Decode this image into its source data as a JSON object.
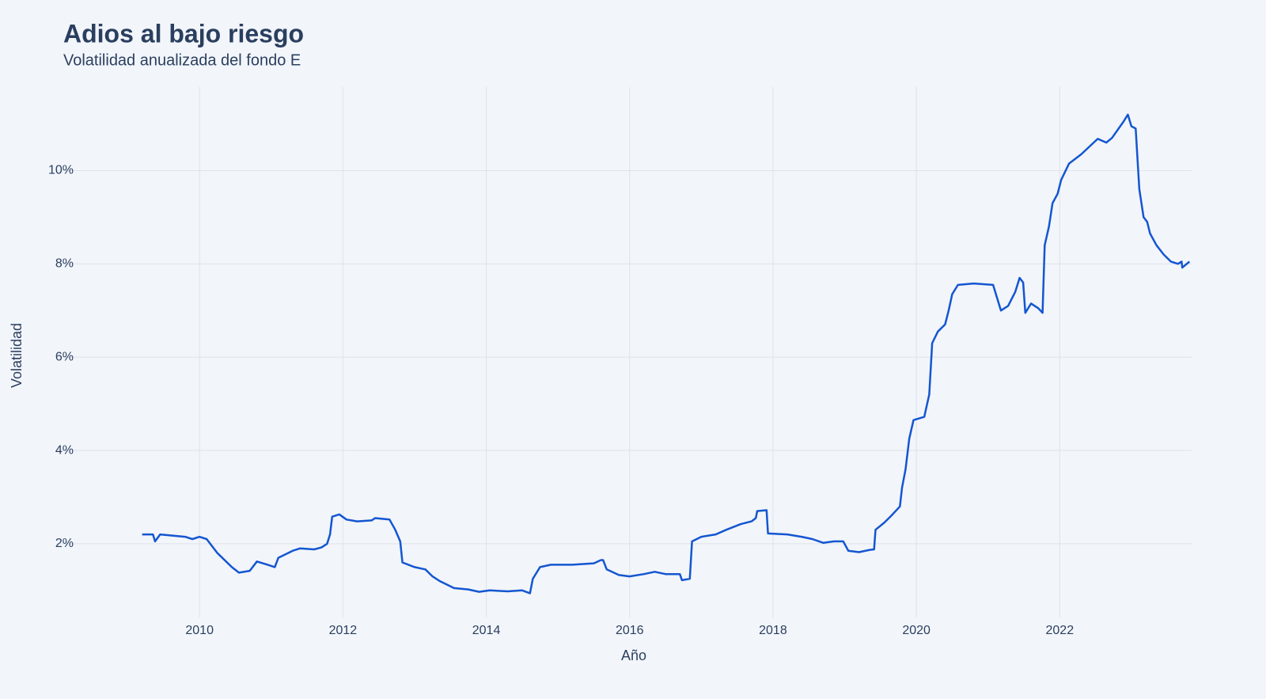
{
  "chart_data": {
    "type": "line",
    "title": "Adios al bajo riesgo",
    "subtitle": "Volatilidad anualizada del fondo E",
    "x_label": "Año",
    "y_label": "Volatilidad",
    "xlim": [
      2008,
      2023.84
    ],
    "xticks": [
      2010,
      2012,
      2014,
      2016,
      2018,
      2020,
      2022
    ],
    "ylim": [
      0.42,
      11.79
    ],
    "yticks": [
      {
        "value": 2,
        "label": "2%"
      },
      {
        "value": 4,
        "label": "4%"
      },
      {
        "value": 6,
        "label": "6%"
      },
      {
        "value": 8,
        "label": "8%"
      },
      {
        "value": 10,
        "label": "10%"
      }
    ],
    "grid": true,
    "series": [
      {
        "name": "Volatilidad",
        "color": "#1456d1",
        "x": [
          2009.2,
          2009.35,
          2009.38,
          2009.45,
          2009.8,
          2009.9,
          2010.0,
          2010.1,
          2010.25,
          2010.45,
          2010.55,
          2010.7,
          2010.8,
          2010.95,
          2011.05,
          2011.1,
          2011.3,
          2011.4,
          2011.6,
          2011.7,
          2011.78,
          2011.82,
          2011.85,
          2011.95,
          2012.05,
          2012.2,
          2012.4,
          2012.45,
          2012.65,
          2012.73,
          2012.8,
          2012.83,
          2013.0,
          2013.15,
          2013.25,
          2013.35,
          2013.55,
          2013.75,
          2013.9,
          2014.05,
          2014.3,
          2014.5,
          2014.61,
          2014.65,
          2014.75,
          2014.9,
          2015.2,
          2015.5,
          2015.6,
          2015.63,
          2015.68,
          2015.85,
          2016.0,
          2016.2,
          2016.35,
          2016.5,
          2016.7,
          2016.73,
          2016.84,
          2016.87,
          2017.0,
          2017.2,
          2017.35,
          2017.55,
          2017.7,
          2017.76,
          2017.78,
          2017.91,
          2017.93,
          2018.2,
          2018.4,
          2018.55,
          2018.7,
          2018.85,
          2018.98,
          2019.05,
          2019.2,
          2019.35,
          2019.41,
          2019.43,
          2019.55,
          2019.65,
          2019.77,
          2019.8,
          2019.85,
          2019.9,
          2019.96,
          2020.11,
          2020.18,
          2020.22,
          2020.3,
          2020.4,
          2020.45,
          2020.5,
          2020.58,
          2020.8,
          2021.07,
          2021.12,
          2021.18,
          2021.28,
          2021.38,
          2021.44,
          2021.49,
          2021.52,
          2021.6,
          2021.7,
          2021.76,
          2021.79,
          2021.85,
          2021.9,
          2021.97,
          2022.02,
          2022.13,
          2022.3,
          2022.53,
          2022.65,
          2022.73,
          2022.89,
          2022.95,
          2023.0,
          2023.06,
          2023.11,
          2023.17,
          2023.22,
          2023.26,
          2023.35,
          2023.45,
          2023.55,
          2023.65,
          2023.7,
          2023.71,
          2023.81
        ],
        "values": [
          2.2,
          2.2,
          2.05,
          2.2,
          2.15,
          2.1,
          2.15,
          2.1,
          1.8,
          1.5,
          1.38,
          1.42,
          1.62,
          1.55,
          1.5,
          1.7,
          1.85,
          1.9,
          1.88,
          1.92,
          2.0,
          2.2,
          2.58,
          2.63,
          2.52,
          2.48,
          2.5,
          2.55,
          2.52,
          2.3,
          2.05,
          1.6,
          1.5,
          1.45,
          1.3,
          1.2,
          1.05,
          1.02,
          0.97,
          1.0,
          0.98,
          1.0,
          0.94,
          1.25,
          1.5,
          1.55,
          1.55,
          1.58,
          1.65,
          1.65,
          1.45,
          1.33,
          1.3,
          1.35,
          1.4,
          1.35,
          1.35,
          1.22,
          1.25,
          2.05,
          2.15,
          2.2,
          2.3,
          2.42,
          2.48,
          2.55,
          2.7,
          2.72,
          2.22,
          2.2,
          2.15,
          2.1,
          2.02,
          2.05,
          2.05,
          1.85,
          1.82,
          1.87,
          1.88,
          2.3,
          2.45,
          2.6,
          2.8,
          3.2,
          3.6,
          4.25,
          4.65,
          4.72,
          5.2,
          6.3,
          6.55,
          6.7,
          7.0,
          7.35,
          7.55,
          7.58,
          7.55,
          7.3,
          7.0,
          7.1,
          7.4,
          7.7,
          7.6,
          6.95,
          7.15,
          7.05,
          6.95,
          8.4,
          8.8,
          9.3,
          9.5,
          9.8,
          10.15,
          10.35,
          10.68,
          10.6,
          10.7,
          11.05,
          11.2,
          10.95,
          10.9,
          9.6,
          9.0,
          8.9,
          8.65,
          8.4,
          8.2,
          8.05,
          8.0,
          8.05,
          7.92,
          8.05
        ]
      }
    ]
  }
}
